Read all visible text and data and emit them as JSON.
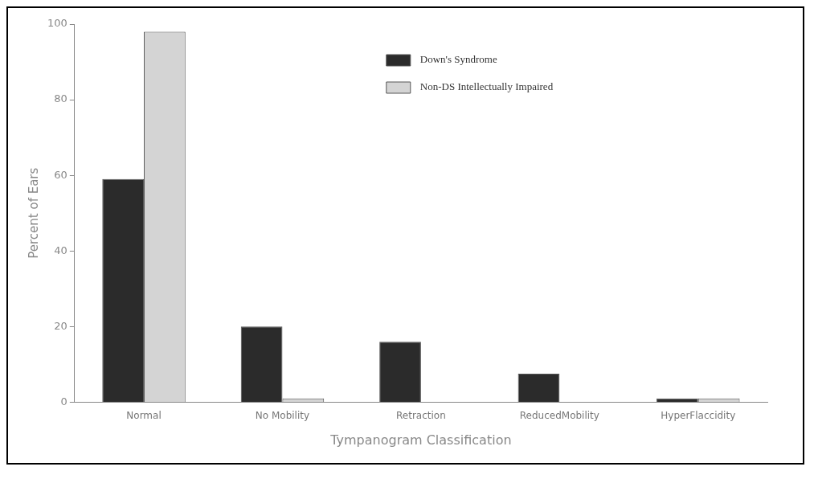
{
  "chart_data": {
    "type": "bar",
    "xlabel": "Tympanogram Classification",
    "ylabel": "Percent of Ears",
    "categories": [
      "Normal",
      "No Mobility",
      "Retraction",
      "ReducedMobility",
      "HyperFlaccidity"
    ],
    "series": [
      {
        "name": "Down's Syndrome",
        "color": "#2b2b2b",
        "values": [
          59,
          20,
          16,
          7.5,
          1
        ]
      },
      {
        "name": "Non-DS Intellectually Impaired",
        "color": "#d4d4d4",
        "values": [
          98,
          1,
          0,
          0,
          1
        ]
      }
    ],
    "ylim": [
      0,
      100
    ],
    "yticks": [
      0,
      20,
      40,
      60,
      80,
      100
    ],
    "grid": false,
    "legend": "top right"
  }
}
